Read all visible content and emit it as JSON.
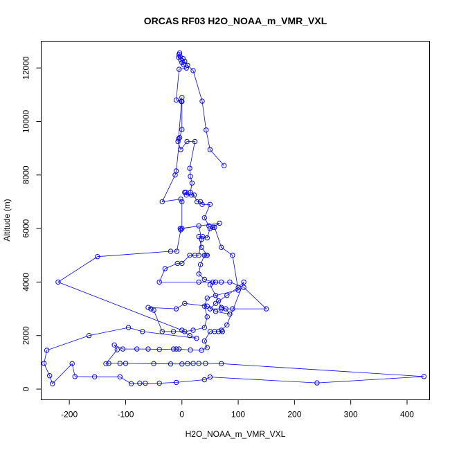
{
  "chart_data": {
    "type": "line",
    "title": "ORCAS RF03 H2O_NOAA_m_VMR_VXL",
    "xlabel": "H2O_NOAA_m_VMR_VXL",
    "ylabel": "Altitude (m)",
    "xlim": [
      -250,
      440
    ],
    "ylim": [
      -400,
      13000
    ],
    "xticks": [
      -200,
      -100,
      0,
      100,
      200,
      300,
      400
    ],
    "yticks": [
      0,
      2000,
      4000,
      6000,
      8000,
      10000,
      12000
    ],
    "grid": false,
    "marker": "open-circle",
    "series_color": "#0000ff",
    "points": [
      [
        75,
        8350
      ],
      [
        50,
        8950
      ],
      [
        43,
        9680
      ],
      [
        36,
        10760
      ],
      [
        20,
        11900
      ],
      [
        10,
        12100
      ],
      [
        5,
        12250
      ],
      [
        2,
        12350
      ],
      [
        -3,
        12420
      ],
      [
        -5,
        12500
      ],
      [
        -4,
        12560
      ],
      [
        -6,
        12400
      ],
      [
        -2,
        12300
      ],
      [
        0,
        12200
      ],
      [
        3,
        12120
      ],
      [
        8,
        12000
      ],
      [
        -5,
        11950
      ],
      [
        -10,
        10800
      ],
      [
        -1,
        10750
      ],
      [
        0,
        10900
      ],
      [
        -6,
        9350
      ],
      [
        -7,
        9250
      ],
      [
        -2,
        8950
      ],
      [
        9,
        9250
      ],
      [
        23,
        9250
      ],
      [
        14,
        8250
      ],
      [
        15,
        7950
      ],
      [
        18,
        7700
      ],
      [
        15,
        7350
      ],
      [
        7,
        7350
      ],
      [
        5,
        7350
      ],
      [
        8,
        7250
      ],
      [
        17,
        7250
      ],
      [
        22,
        7250
      ],
      [
        27,
        7000
      ],
      [
        33,
        7000
      ],
      [
        36,
        6900
      ],
      [
        50,
        6900
      ],
      [
        40,
        6400
      ],
      [
        48,
        6100
      ],
      [
        55,
        6050
      ],
      [
        67,
        6200
      ],
      [
        -3,
        6000
      ],
      [
        -2,
        5950
      ],
      [
        -9,
        5150
      ],
      [
        -20,
        5150
      ],
      [
        -150,
        4950
      ],
      [
        -220,
        4000
      ],
      [
        0,
        2200
      ],
      [
        14,
        2000
      ],
      [
        26,
        1900
      ],
      [
        -70,
        2150
      ],
      [
        -95,
        2300
      ],
      [
        -165,
        2000
      ],
      [
        -240,
        1450
      ],
      [
        -245,
        960
      ],
      [
        -235,
        500
      ],
      [
        -230,
        200
      ],
      [
        -195,
        950
      ],
      [
        -190,
        470
      ],
      [
        -155,
        460
      ],
      [
        -110,
        460
      ],
      [
        -90,
        200
      ],
      [
        -75,
        220
      ],
      [
        -65,
        220
      ],
      [
        -40,
        220
      ],
      [
        -10,
        250
      ],
      [
        40,
        350
      ],
      [
        50,
        450
      ],
      [
        240,
        230
      ],
      [
        430,
        470
      ],
      [
        70,
        950
      ],
      [
        42,
        960
      ],
      [
        30,
        960
      ],
      [
        20,
        960
      ],
      [
        10,
        950
      ],
      [
        0,
        940
      ],
      [
        -20,
        940
      ],
      [
        -50,
        950
      ],
      [
        -100,
        960
      ],
      [
        -110,
        960
      ],
      [
        -130,
        960
      ],
      [
        -135,
        950
      ],
      [
        -115,
        1470
      ],
      [
        -120,
        1650
      ],
      [
        -105,
        1500
      ],
      [
        -80,
        1500
      ],
      [
        -60,
        1500
      ],
      [
        -40,
        1480
      ],
      [
        -15,
        1500
      ],
      [
        -10,
        1500
      ],
      [
        -5,
        1500
      ],
      [
        15,
        1460
      ],
      [
        35,
        1450
      ],
      [
        45,
        1550
      ],
      [
        40,
        1800
      ],
      [
        50,
        2150
      ],
      [
        58,
        2150
      ],
      [
        65,
        2150
      ],
      [
        72,
        2150
      ],
      [
        70,
        2200
      ],
      [
        80,
        2400
      ],
      [
        110,
        4000
      ],
      [
        100,
        3800
      ],
      [
        80,
        3500
      ],
      [
        60,
        3200
      ],
      [
        50,
        3000
      ],
      [
        70,
        3000
      ],
      [
        90,
        3000
      ],
      [
        150,
        3000
      ],
      [
        110,
        3800
      ],
      [
        85,
        4000
      ],
      [
        70,
        4000
      ],
      [
        55,
        4000
      ],
      [
        40,
        4100
      ],
      [
        30,
        4300
      ],
      [
        33,
        4650
      ],
      [
        40,
        5000
      ],
      [
        43,
        5000
      ],
      [
        45,
        5000
      ],
      [
        35,
        5300
      ],
      [
        30,
        5700
      ],
      [
        37,
        5700
      ],
      [
        45,
        5650
      ],
      [
        50,
        6000
      ],
      [
        58,
        6050
      ],
      [
        70,
        5300
      ],
      [
        90,
        5000
      ],
      [
        100,
        3700
      ],
      [
        60,
        3500
      ],
      [
        45,
        3400
      ],
      [
        40,
        3100
      ],
      [
        45,
        2700
      ],
      [
        40,
        2300
      ],
      [
        20,
        2200
      ],
      [
        5,
        2150
      ],
      [
        -15,
        2150
      ],
      [
        -35,
        2150
      ],
      [
        -50,
        2950
      ],
      [
        -55,
        3000
      ],
      [
        -60,
        3050
      ],
      [
        -10,
        3000
      ],
      [
        5,
        3200
      ],
      [
        45,
        3100
      ],
      [
        60,
        2900
      ],
      [
        85,
        2800
      ],
      [
        78,
        3000
      ],
      [
        70,
        3050
      ],
      [
        65,
        3300
      ],
      [
        50,
        3900
      ],
      [
        60,
        4000
      ],
      [
        30,
        4000
      ],
      [
        -40,
        4000
      ],
      [
        -30,
        4500
      ],
      [
        -8,
        4700
      ],
      [
        0,
        4700
      ],
      [
        14,
        5000
      ],
      [
        23,
        5000
      ],
      [
        30,
        5000
      ],
      [
        35,
        5600
      ],
      [
        30,
        6100
      ],
      [
        0,
        6000
      ],
      [
        0,
        7000
      ],
      [
        -2,
        7100
      ],
      [
        -35,
        7000
      ],
      [
        -12,
        8000
      ],
      [
        -10,
        8150
      ],
      [
        -4,
        9400
      ],
      [
        0,
        9700
      ],
      [
        0,
        10750
      ]
    ]
  }
}
